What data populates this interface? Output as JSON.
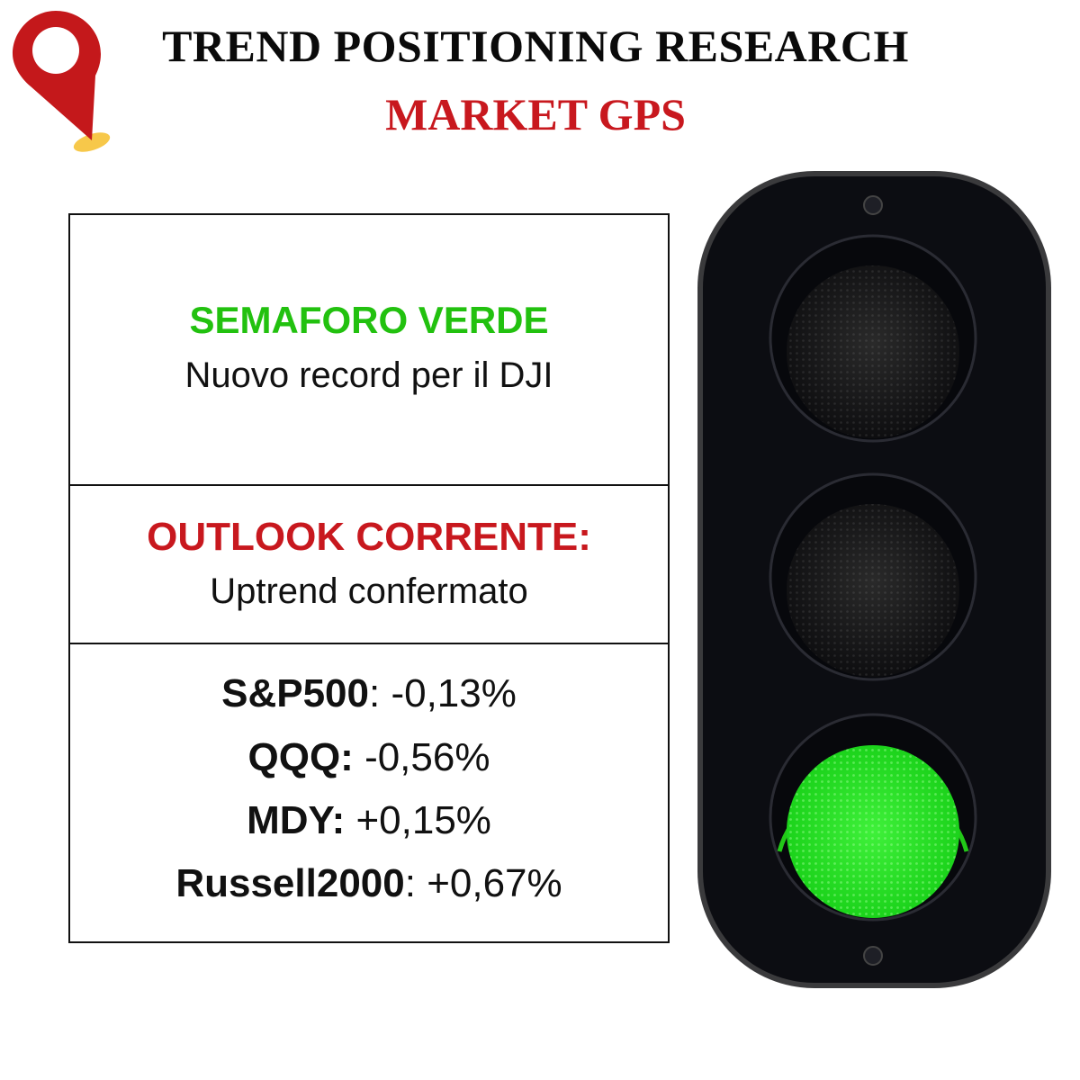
{
  "header": {
    "title": "TREND POSITIONING RESEARCH",
    "subtitle": "MARKET GPS"
  },
  "status": {
    "heading": "SEMAFORO VERDE",
    "text": "Nuovo record per il DJI"
  },
  "outlook": {
    "heading": "OUTLOOK CORRENTE:",
    "text": "Uptrend confermato"
  },
  "indices": [
    {
      "name": "S&P500",
      "sep": ": ",
      "value": "-0,13%"
    },
    {
      "name": "QQQ:",
      "sep": " ",
      "value": "-0,56%"
    },
    {
      "name": "MDY:",
      "sep": " ",
      "value": "+0,15%"
    },
    {
      "name": "Russell2000",
      "sep": ": ",
      "value": "+0,67%"
    }
  ],
  "traffic_light": {
    "active": "green",
    "lights": [
      "red",
      "yellow",
      "green"
    ]
  },
  "colors": {
    "green": "#22c10f",
    "red": "#c8181e",
    "pin": "#c4181b",
    "pin_base": "#f7c84a"
  },
  "icons": {
    "logo": "map-pin-icon"
  }
}
